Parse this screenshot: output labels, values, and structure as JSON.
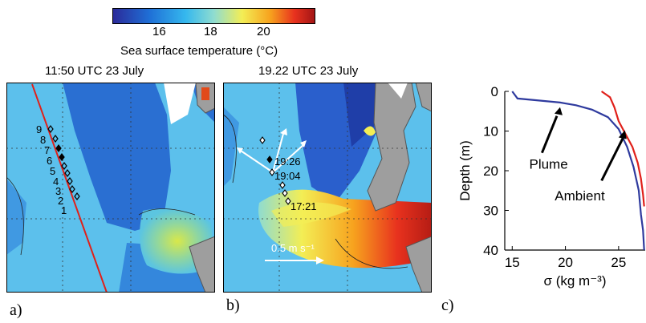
{
  "colorbar": {
    "ticks": [
      "16",
      "18",
      "20"
    ],
    "label": "Sea surface temperature (°C)",
    "colors": [
      "#2b2b9a",
      "#1f6fd6",
      "#35b8ee",
      "#8fdcd0",
      "#f3ee55",
      "#f7a21e",
      "#e8321e",
      "#a31515"
    ]
  },
  "panel_a": {
    "title": "11:50 UTC 23 July",
    "letter": "a)",
    "station_numbers": [
      "9",
      "8",
      "7",
      "6",
      "5",
      "4",
      "3",
      "2",
      "1"
    ],
    "track_color": "#e0201a"
  },
  "panel_b": {
    "title": "19.22 UTC 23 July",
    "letter": "b)",
    "times": [
      "19:26",
      "19:04",
      "17:21"
    ],
    "scale_label": "0.5 m s⁻¹"
  },
  "panel_c": {
    "letter": "c)",
    "chart_data": {
      "type": "line",
      "xlabel": "σ (kg m⁻³)",
      "ylabel": "Depth (m)",
      "xlim": [
        14.3,
        27.5
      ],
      "ylim": [
        40,
        0
      ],
      "xticks": [
        15,
        20,
        25
      ],
      "yticks": [
        0,
        10,
        20,
        30,
        40
      ],
      "series": [
        {
          "name": "Plume",
          "color": "#2e3a9e",
          "points": [
            [
              15.0,
              0.0
            ],
            [
              15.5,
              1.8
            ],
            [
              17.5,
              2.3
            ],
            [
              19.5,
              2.8
            ],
            [
              21.0,
              3.5
            ],
            [
              22.5,
              4.6
            ],
            [
              24.0,
              6.5
            ],
            [
              25.0,
              9.5
            ],
            [
              25.8,
              14.0
            ],
            [
              26.4,
              19.0
            ],
            [
              26.9,
              25.0
            ],
            [
              27.1,
              31.0
            ],
            [
              27.3,
              35.0
            ],
            [
              27.4,
              40.0
            ]
          ]
        },
        {
          "name": "Ambient",
          "color": "#e0201a",
          "points": [
            [
              23.4,
              0.0
            ],
            [
              24.2,
              1.5
            ],
            [
              24.6,
              4.0
            ],
            [
              25.0,
              7.5
            ],
            [
              25.6,
              10.5
            ],
            [
              26.3,
              14.0
            ],
            [
              26.8,
              18.0
            ],
            [
              27.1,
              22.0
            ],
            [
              27.3,
              26.0
            ],
            [
              27.4,
              29.0
            ]
          ]
        }
      ]
    }
  }
}
